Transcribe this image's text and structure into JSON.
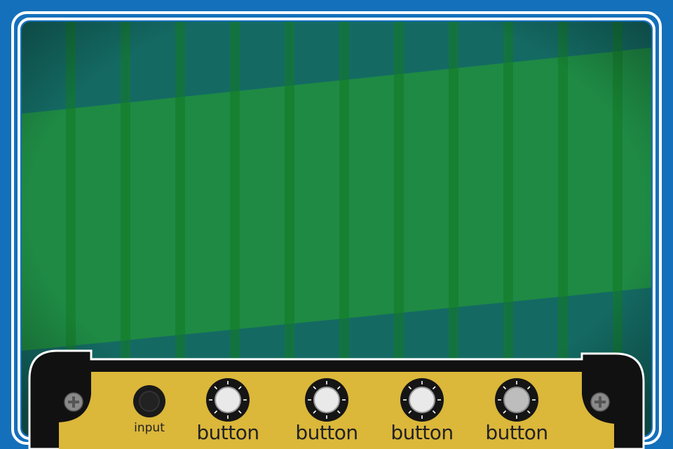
{
  "amp": {
    "input_label": "input",
    "knobs": [
      {
        "label": "button"
      },
      {
        "label": "button"
      },
      {
        "label": "button"
      },
      {
        "label": "button"
      }
    ]
  },
  "colors": {
    "background": "#1470bb",
    "frame": "#ffffff",
    "screen_teal": "#146a63",
    "screen_green": "#1e8a44",
    "stripe": "#137a24",
    "panel": "#dbb73a",
    "panel_border": "#111111"
  },
  "icons": {
    "screw": "screw-icon",
    "jack": "input-jack-icon",
    "knob": "knob-icon"
  }
}
